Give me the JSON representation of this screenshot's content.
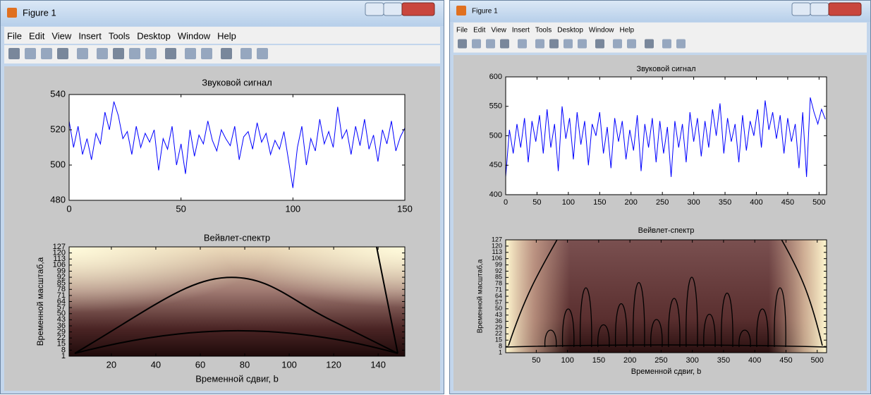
{
  "windows": [
    {
      "title": "Figure 1",
      "menu": [
        "File",
        "Edit",
        "View",
        "Insert",
        "Tools",
        "Desktop",
        "Window",
        "Help"
      ],
      "plots": [
        {
          "type": "line",
          "title": "Звуковой сигнал",
          "color": "#0000ff",
          "x": [
            0,
            2,
            4,
            6,
            8,
            10,
            12,
            14,
            16,
            18,
            20,
            22,
            24,
            26,
            28,
            30,
            32,
            34,
            36,
            38,
            40,
            42,
            44,
            46,
            48,
            50,
            52,
            54,
            56,
            58,
            60,
            62,
            64,
            66,
            68,
            70,
            72,
            74,
            76,
            78,
            80,
            82,
            84,
            86,
            88,
            90,
            92,
            94,
            96,
            98,
            100,
            102,
            104,
            106,
            108,
            110,
            112,
            114,
            116,
            118,
            120,
            122,
            124,
            126,
            128,
            130,
            132,
            134,
            136,
            138,
            140,
            142,
            144,
            146,
            148,
            150
          ],
          "values": [
            525,
            510,
            522,
            506,
            515,
            503,
            518,
            512,
            530,
            520,
            536,
            528,
            515,
            519,
            506,
            522,
            510,
            518,
            513,
            520,
            497,
            515,
            509,
            522,
            500,
            512,
            495,
            520,
            505,
            517,
            512,
            525,
            514,
            508,
            520,
            515,
            511,
            522,
            503,
            516,
            519,
            509,
            524,
            513,
            518,
            506,
            514,
            509,
            519,
            503,
            487,
            510,
            522,
            500,
            515,
            508,
            526,
            512,
            519,
            510,
            533,
            515,
            520,
            506,
            522,
            511,
            526,
            509,
            517,
            502,
            520,
            512,
            525,
            508,
            516,
            521
          ],
          "xlim": [
            0,
            150
          ],
          "xticks": [
            0,
            50,
            100,
            150
          ],
          "ylim": [
            480,
            540
          ],
          "yticks": [
            480,
            500,
            520,
            540
          ]
        },
        {
          "type": "spectrum",
          "title": "Вейвлет-спектр",
          "xlabel": "Временной сдвиг, b",
          "ylabel": "Временной масштаб,a",
          "xlim": [
            1,
            152
          ],
          "xticks": [
            20,
            40,
            60,
            80,
            100,
            120,
            140
          ],
          "ylim": [
            1,
            127
          ],
          "yticks": [
            1,
            8,
            15,
            22,
            29,
            36,
            43,
            50,
            57,
            64,
            71,
            78,
            85,
            92,
            99,
            106,
            113,
            120,
            127
          ]
        }
      ]
    },
    {
      "title": "Figure 1",
      "menu": [
        "File",
        "Edit",
        "View",
        "Insert",
        "Tools",
        "Desktop",
        "Window",
        "Help"
      ],
      "plots": [
        {
          "type": "line",
          "title": "Звуковой сигнал",
          "color": "#0000ff",
          "x": [
            0,
            6,
            12,
            18,
            24,
            30,
            36,
            42,
            48,
            54,
            60,
            66,
            72,
            78,
            84,
            90,
            96,
            102,
            108,
            114,
            120,
            126,
            132,
            138,
            144,
            150,
            156,
            162,
            168,
            174,
            180,
            186,
            192,
            198,
            204,
            210,
            216,
            222,
            228,
            234,
            240,
            246,
            252,
            258,
            264,
            270,
            276,
            282,
            288,
            294,
            300,
            306,
            312,
            318,
            324,
            330,
            336,
            342,
            348,
            354,
            360,
            366,
            372,
            378,
            384,
            390,
            396,
            402,
            408,
            414,
            420,
            426,
            432,
            438,
            444,
            450,
            456,
            462,
            468,
            474,
            480,
            486,
            492,
            498,
            504,
            510
          ],
          "values": [
            430,
            510,
            470,
            520,
            480,
            530,
            455,
            525,
            490,
            535,
            470,
            545,
            480,
            520,
            440,
            550,
            495,
            530,
            460,
            540,
            485,
            525,
            450,
            520,
            500,
            540,
            470,
            515,
            445,
            530,
            490,
            525,
            460,
            510,
            475,
            535,
            440,
            520,
            480,
            530,
            455,
            525,
            470,
            515,
            430,
            525,
            480,
            520,
            455,
            540,
            490,
            530,
            465,
            525,
            480,
            545,
            500,
            555,
            470,
            530,
            490,
            520,
            455,
            535,
            475,
            525,
            500,
            545,
            480,
            560,
            510,
            540,
            495,
            535,
            470,
            530,
            490,
            520,
            445,
            540,
            430,
            565,
            540,
            520,
            545,
            528
          ],
          "xlim": [
            0,
            512
          ],
          "xticks": [
            0,
            50,
            100,
            150,
            200,
            250,
            300,
            350,
            400,
            450,
            500
          ],
          "ylim": [
            400,
            600
          ],
          "yticks": [
            400,
            450,
            500,
            550,
            600
          ]
        },
        {
          "type": "spectrum",
          "title": "Вейвлет-спектр",
          "xlabel": "Временной сдвиг, b",
          "ylabel": "Временной масштаб,a",
          "xlim": [
            1,
            515
          ],
          "xticks": [
            50,
            100,
            150,
            200,
            250,
            300,
            350,
            400,
            450,
            500
          ],
          "ylim": [
            1,
            127
          ],
          "yticks": [
            1,
            8,
            15,
            22,
            29,
            36,
            43,
            50,
            57,
            64,
            71,
            78,
            85,
            92,
            99,
            106,
            113,
            120,
            127
          ]
        }
      ]
    }
  ]
}
